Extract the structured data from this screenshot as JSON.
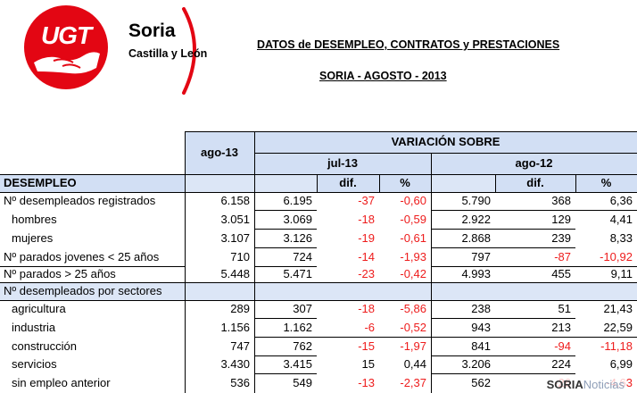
{
  "logo": {
    "letters": "UGT",
    "name": "Soria",
    "region": "Castilla y León",
    "brand_color": "#e30613"
  },
  "title": "DATOS de DESEMPLEO, CONTRATOS y PRESTACIONES",
  "subtitle": "SORIA - AGOSTO - 2013",
  "header": {
    "current": "ago-13",
    "variation": "VARIACIÓN SOBRE",
    "prev_month": "jul-13",
    "prev_year": "ago-12",
    "dif": "dif.",
    "pct": "%",
    "section1": "DESEMPLEO",
    "section2": "Nº desempleados por sectores"
  },
  "rows": [
    {
      "label": "Nº desempleados registrados",
      "v": "6.158",
      "jul": "6.195",
      "jd": "-37",
      "jp": "-0,60",
      "ago": "5.790",
      "ad": "368",
      "ap": "6,36"
    },
    {
      "label": "hombres",
      "v": "3.051",
      "jul": "3.069",
      "jd": "-18",
      "jp": "-0,59",
      "ago": "2.922",
      "ad": "129",
      "ap": "4,41"
    },
    {
      "label": "mujeres",
      "v": "3.107",
      "jul": "3.126",
      "jd": "-19",
      "jp": "-0,61",
      "ago": "2.868",
      "ad": "239",
      "ap": "8,33"
    },
    {
      "label": "Nº parados jovenes < 25 años",
      "v": "710",
      "jul": "724",
      "jd": "-14",
      "jp": "-1,93",
      "ago": "797",
      "ad": "-87",
      "ap": "-10,92"
    },
    {
      "label": "Nº parados > 25 años",
      "v": "5.448",
      "jul": "5.471",
      "jd": "-23",
      "jp": "-0,42",
      "ago": "4.993",
      "ad": "455",
      "ap": "9,11"
    },
    {
      "label": "agricultura",
      "v": "289",
      "jul": "307",
      "jd": "-18",
      "jp": "-5,86",
      "ago": "238",
      "ad": "51",
      "ap": "21,43"
    },
    {
      "label": "industria",
      "v": "1.156",
      "jul": "1.162",
      "jd": "-6",
      "jp": "-0,52",
      "ago": "943",
      "ad": "213",
      "ap": "22,59"
    },
    {
      "label": "construcción",
      "v": "747",
      "jul": "762",
      "jd": "-15",
      "jp": "-1,97",
      "ago": "841",
      "ad": "-94",
      "ap": "-11,18"
    },
    {
      "label": "servicios",
      "v": "3.430",
      "jul": "3.415",
      "jd": "15",
      "jp": "0,44",
      "ago": "3.206",
      "ad": "224",
      "ap": "6,99"
    },
    {
      "label": "sin empleo anterior",
      "v": "536",
      "jul": "549",
      "jd": "-13",
      "jp": "-2,37",
      "ago": "562",
      "ad": "-26",
      "ap": "-4,63"
    }
  ],
  "watermark": {
    "bold": "SORIA",
    "light": "Noticias"
  }
}
